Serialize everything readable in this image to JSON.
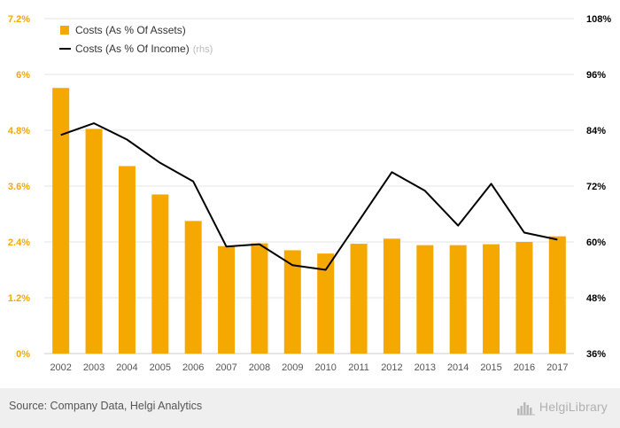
{
  "chart_data": {
    "type": "bar",
    "categories": [
      "2002",
      "2003",
      "2004",
      "2005",
      "2006",
      "2007",
      "2008",
      "2009",
      "2010",
      "2011",
      "2012",
      "2013",
      "2014",
      "2015",
      "2016",
      "2017"
    ],
    "series": [
      {
        "name": "Costs (As % Of Assets)",
        "type": "bar",
        "axis": "left",
        "color": "#f5a800",
        "values": [
          5.71,
          4.83,
          4.03,
          3.42,
          2.85,
          2.31,
          2.37,
          2.22,
          2.15,
          2.36,
          2.47,
          2.33,
          2.33,
          2.35,
          2.4,
          2.52
        ]
      },
      {
        "name": "Costs (As % Of Income)",
        "legend_suffix": "(rhs)",
        "type": "line",
        "axis": "right",
        "color": "#000000",
        "values": [
          83.0,
          85.5,
          82.0,
          77.0,
          73.0,
          59.0,
          59.5,
          55.0,
          54.0,
          64.5,
          75.0,
          71.0,
          63.5,
          72.5,
          62.0,
          60.5
        ]
      }
    ],
    "y_left": {
      "ticks": [
        "0%",
        "1.2%",
        "2.4%",
        "3.6%",
        "4.8%",
        "6%",
        "7.2%"
      ],
      "min": 0,
      "max": 7.2,
      "color": "#f5a800"
    },
    "y_right": {
      "ticks": [
        "36%",
        "48%",
        "60%",
        "72%",
        "84%",
        "96%",
        "108%"
      ],
      "min": 36,
      "max": 108,
      "color": "#000000"
    },
    "grid": true,
    "legend_position": "top-left"
  },
  "footer": {
    "source": "Source: Company Data, Helgi Analytics",
    "brand": "HelgiLibrary"
  }
}
